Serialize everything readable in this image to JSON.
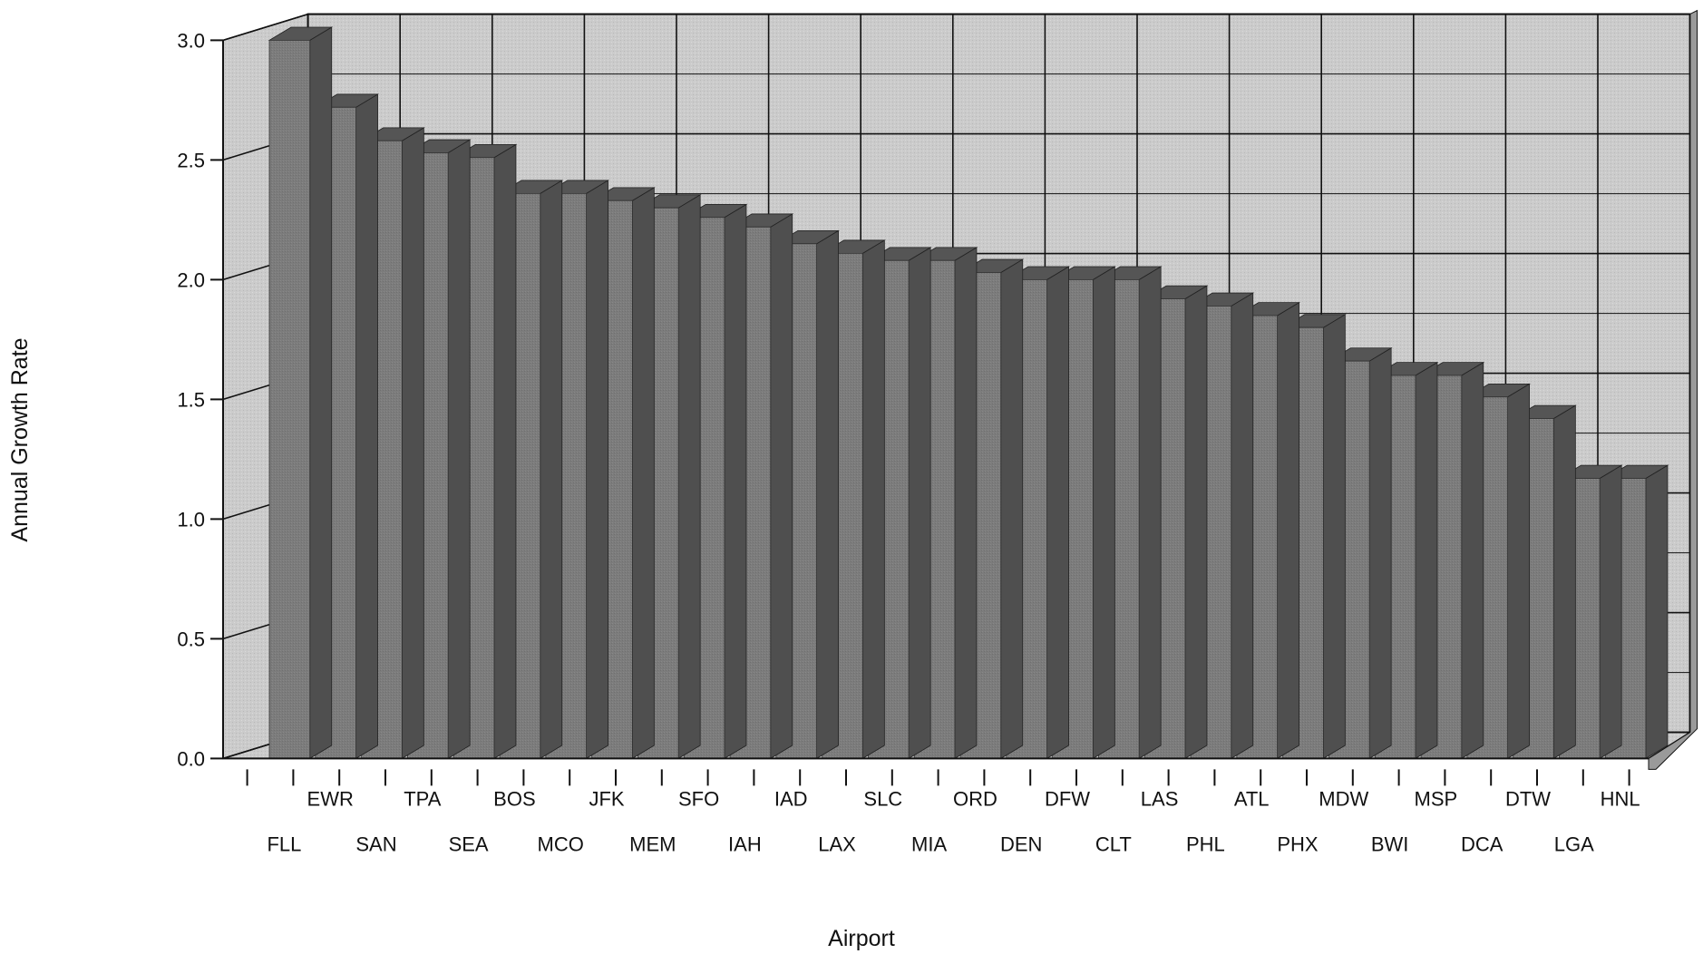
{
  "chart_data": {
    "type": "bar",
    "style": "3d",
    "xlabel": "Airport",
    "ylabel": "Annual Growth Rate",
    "ylim": [
      0,
      3.0
    ],
    "yticks": [
      0.0,
      0.5,
      1.0,
      1.5,
      2.0,
      2.5,
      3.0
    ],
    "yticks_labels": [
      "0.0",
      "0.5",
      "1.0",
      "1.5",
      "2.0",
      "2.5",
      "3.0"
    ],
    "grid": true,
    "colors": {
      "bar_front": "#7c7c7c",
      "bar_top": "#555555",
      "bar_side": "#4f4f4f",
      "wall": "#c9c9c9",
      "grid": "#111111"
    },
    "categories": [
      "FLL",
      "EWR",
      "SAN",
      "TPA",
      "SEA",
      "BOS",
      "MCO",
      "JFK",
      "MEM",
      "SFO",
      "IAH",
      "IAD",
      "LAX",
      "SLC",
      "MIA",
      "ORD",
      "DEN",
      "DFW",
      "CLT",
      "LAS",
      "PHL",
      "ATL",
      "PHX",
      "MDW",
      "BWI",
      "MSP",
      "DCA",
      "DTW",
      "LGA",
      "HNL"
    ],
    "values": [
      3.0,
      2.72,
      2.58,
      2.53,
      2.51,
      2.36,
      2.36,
      2.33,
      2.3,
      2.26,
      2.22,
      2.15,
      2.11,
      2.08,
      2.08,
      2.03,
      2.0,
      2.0,
      2.0,
      1.92,
      1.89,
      1.85,
      1.8,
      1.66,
      1.6,
      1.6,
      1.51,
      1.42,
      1.17,
      1.17
    ]
  }
}
